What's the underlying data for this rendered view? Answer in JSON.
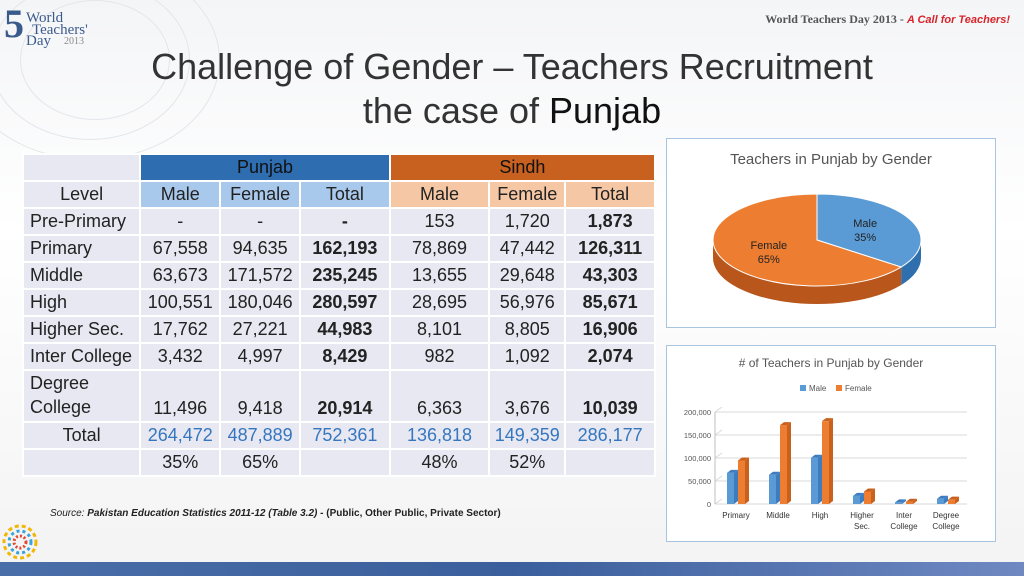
{
  "header": {
    "logo_numeral": "5",
    "logo_line1": "World",
    "logo_line2": "Teachers'",
    "logo_line3": "Day",
    "logo_year": "2013",
    "event_text": "World Teachers Day 2013 -",
    "event_tagline": "A Call for Teachers!"
  },
  "title": {
    "line1": "Challenge of Gender – Teachers Recruitment",
    "line2_prefix": "the case of ",
    "line2_emphasis": "Punjab"
  },
  "table": {
    "group_headers": [
      "Punjab",
      "Sindh"
    ],
    "columns": [
      "Level",
      "Male",
      "Female",
      "Total",
      "Male",
      "Female",
      "Total"
    ],
    "rows": [
      {
        "level": "Pre-Primary",
        "cells": [
          "-",
          "-",
          "-",
          "153",
          "1,720",
          "1,873"
        ]
      },
      {
        "level": "Primary",
        "cells": [
          "67,558",
          "94,635",
          "162,193",
          "78,869",
          "47,442",
          "126,311"
        ]
      },
      {
        "level": "Middle",
        "cells": [
          "63,673",
          "171,572",
          "235,245",
          "13,655",
          "29,648",
          "43,303"
        ]
      },
      {
        "level": "High",
        "cells": [
          "100,551",
          "180,046",
          "280,597",
          "28,695",
          "56,976",
          "85,671"
        ]
      },
      {
        "level": "Higher Sec.",
        "cells": [
          "17,762",
          "27,221",
          "44,983",
          "8,101",
          "8,805",
          "16,906"
        ]
      },
      {
        "level": "Inter College",
        "cells": [
          "3,432",
          "4,997",
          "8,429",
          "982",
          "1,092",
          "2,074"
        ]
      }
    ],
    "degree_row": {
      "level_line1": "Degree",
      "level_line2": "College",
      "cells": [
        "11,496",
        "9,418",
        "20,914",
        "6,363",
        "3,676",
        "10,039"
      ]
    },
    "total_row": {
      "label": "Total",
      "cells": [
        "264,472",
        "487,889",
        "752,361",
        "136,818",
        "149,359",
        "286,177"
      ]
    },
    "percent_row": {
      "cells": [
        "35%",
        "65%",
        "",
        "48%",
        "52%",
        ""
      ]
    }
  },
  "source": {
    "prefix": "Source:",
    "publication": "Pakistan Education Statistics 2011-12 (Table 3.2)",
    "separator": "-",
    "note": "(Public, Other Public, Private Sector)"
  },
  "colors": {
    "punjab_header": "#2e6db0",
    "sindh_header": "#c8601f",
    "male": "#5b9bd5",
    "female": "#ed7d31",
    "total_text": "#3576bf"
  },
  "chart_data": [
    {
      "type": "pie",
      "title": "Teachers in Punjab by Gender",
      "slices": [
        {
          "label": "Male",
          "value": 35,
          "display": "35%"
        },
        {
          "label": "Female",
          "value": 65,
          "display": "65%"
        }
      ]
    },
    {
      "type": "bar",
      "title": "# of Teachers in Punjab by Gender",
      "categories": [
        "Primary",
        "Middle",
        "High",
        "Higher Sec.",
        "Inter College",
        "Degree College"
      ],
      "category_lines": [
        [
          "Primary"
        ],
        [
          "Middle"
        ],
        [
          "High"
        ],
        [
          "Higher",
          "Sec."
        ],
        [
          "Inter",
          "College"
        ],
        [
          "Degree",
          "College"
        ]
      ],
      "series": [
        {
          "name": "Male",
          "values": [
            67558,
            63673,
            100551,
            17762,
            3432,
            11496
          ]
        },
        {
          "name": "Female",
          "values": [
            94635,
            171572,
            180046,
            27221,
            4997,
            9418
          ]
        }
      ],
      "ylim": [
        0,
        200000
      ],
      "yticks": [
        0,
        50000,
        100000,
        150000,
        200000
      ],
      "ytick_labels": [
        "0",
        "50,000",
        "100,000",
        "150,000",
        "200,000"
      ],
      "legend": "top",
      "grid": true
    }
  ]
}
